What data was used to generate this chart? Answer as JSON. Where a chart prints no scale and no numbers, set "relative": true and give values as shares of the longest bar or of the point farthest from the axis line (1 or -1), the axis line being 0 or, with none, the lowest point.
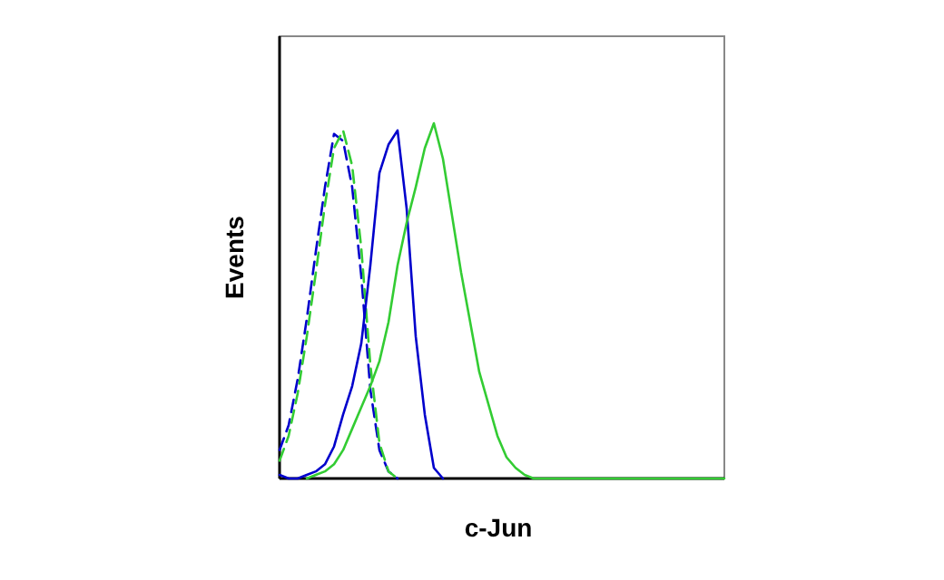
{
  "chart_data": {
    "type": "line",
    "relative": true,
    "xlabel": "c-Jun",
    "ylabel": "Events",
    "categories": [
      null,
      null,
      null,
      null,
      null,
      null,
      null,
      null,
      null,
      null,
      null,
      null,
      null,
      null,
      null,
      null,
      null,
      null,
      null,
      null,
      null,
      null,
      null,
      null,
      null,
      null,
      null,
      null,
      null,
      null,
      null,
      null,
      null,
      null,
      null,
      null,
      null,
      null,
      null,
      null,
      null,
      null,
      null,
      null,
      null,
      null,
      null,
      null,
      null,
      null
    ],
    "series": [
      {
        "color": "#0000cc",
        "line_style": "dashed",
        "values": [
          0.08,
          0.15,
          0.28,
          0.45,
          0.64,
          0.82,
          0.97,
          0.95,
          0.82,
          0.57,
          0.25,
          0.08,
          0.02,
          0,
          null,
          null,
          null,
          null,
          null,
          null,
          null,
          null,
          null,
          null,
          null,
          null,
          null,
          null,
          null,
          null,
          null,
          null,
          null,
          null,
          null,
          null,
          null,
          null,
          null,
          null,
          null,
          null,
          null,
          null,
          null,
          null,
          null,
          null,
          null,
          null
        ]
      },
      {
        "color": "#33cc33",
        "line_style": "dashed",
        "values": [
          0.05,
          0.12,
          0.24,
          0.4,
          0.58,
          0.77,
          0.93,
          0.98,
          0.88,
          0.65,
          0.32,
          0.1,
          0.02,
          0,
          null,
          null,
          null,
          null,
          null,
          null,
          null,
          null,
          null,
          null,
          null,
          null,
          null,
          null,
          null,
          null,
          null,
          null,
          null,
          null,
          null,
          null,
          null,
          null,
          null,
          null,
          null,
          null,
          null,
          null,
          null,
          null,
          null,
          null,
          null,
          null
        ]
      },
      {
        "color": "#0000cc",
        "line_style": "solid",
        "values": [
          0.01,
          0,
          0,
          0.01,
          0.02,
          0.04,
          0.09,
          0.18,
          0.26,
          0.38,
          0.6,
          0.86,
          0.94,
          0.98,
          0.76,
          0.4,
          0.18,
          0.03,
          0,
          null,
          null,
          null,
          null,
          null,
          null,
          null,
          null,
          null,
          null,
          null,
          null,
          null,
          null,
          null,
          null,
          null,
          null,
          null,
          null,
          null,
          null,
          null,
          null,
          null,
          null,
          null,
          null,
          null,
          null,
          null
        ]
      },
      {
        "color": "#33cc33",
        "line_style": "solid",
        "values": [
          null,
          null,
          null,
          0,
          0.01,
          0.02,
          0.04,
          0.08,
          0.14,
          0.2,
          0.26,
          0.33,
          0.44,
          0.6,
          0.72,
          0.82,
          0.93,
          1,
          0.9,
          0.74,
          0.58,
          0.44,
          0.3,
          0.21,
          0.12,
          0.06,
          0.03,
          0.01,
          0,
          0,
          0,
          0,
          0,
          0,
          0,
          0,
          0,
          0,
          0,
          0,
          0,
          0,
          0,
          0,
          0,
          0,
          0,
          0,
          0,
          0
        ]
      }
    ]
  }
}
